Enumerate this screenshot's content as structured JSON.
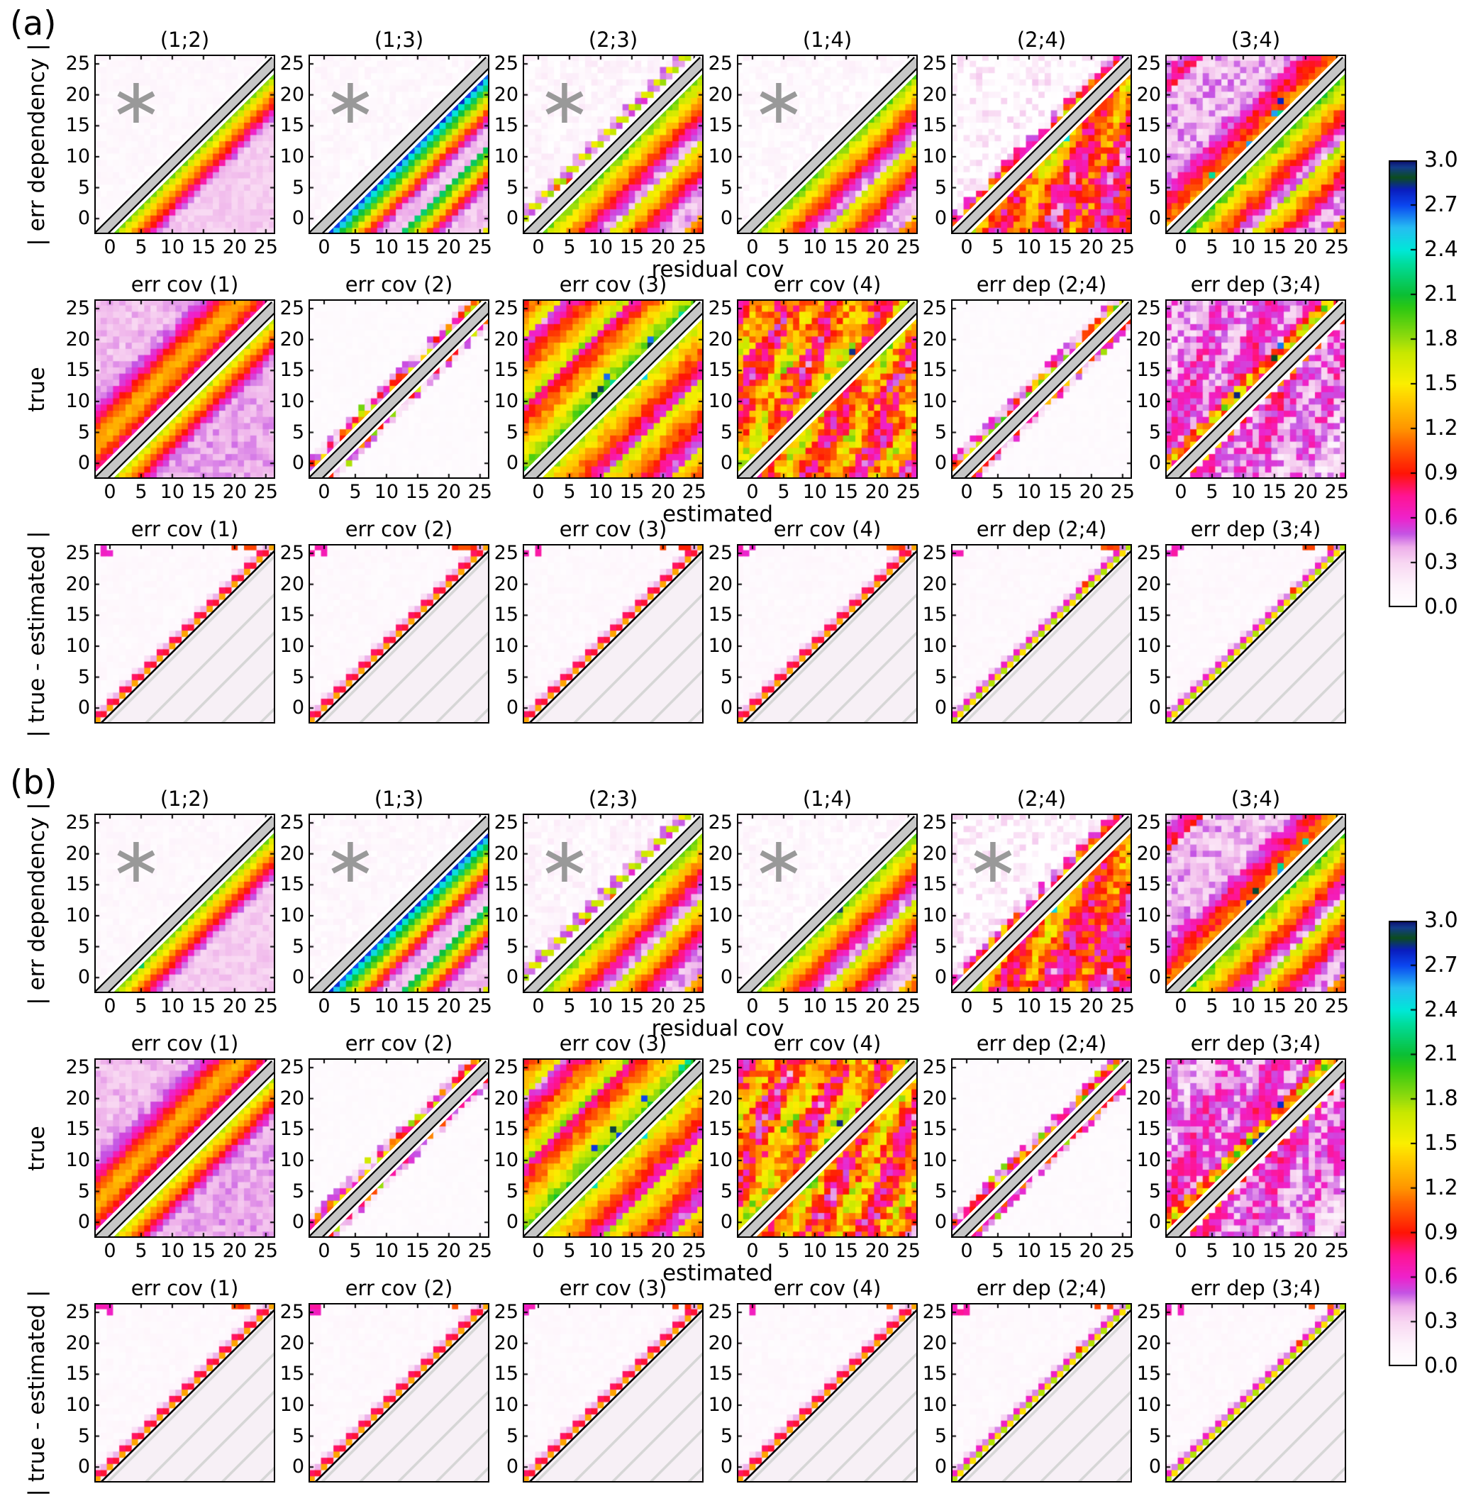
{
  "figure_description": "Two-panel matplotlib-style figure; panels (a) and (b) each contain a 3x6 grid of square heatmaps (axes 0-25) showing covariance / error-dependency diagnostics, with a gray masked diagonal band, gray asterisk markers on selected subplots, hatched masked lower triangles in the bottom row, and a shared 0.0-3.0 rainbow colorbar per panel.",
  "colors": {
    "background": "#ffffff",
    "mask_band_gray": "#c6c6c6",
    "band_edge": "#000000",
    "hatch_line": "#d6d6d6",
    "hatch_bg": "#f7f0f6",
    "asterisk": "#999999",
    "text": "#000000"
  },
  "chart_data": {
    "type": "heatmap",
    "grid_cells": 29,
    "value_range": [
      0,
      3
    ],
    "axis": {
      "ticks": [
        0,
        5,
        10,
        15,
        20,
        25
      ],
      "range": [
        -2.5,
        26.5
      ],
      "grid": false
    },
    "colorbar": {
      "ticks": [
        "3.0",
        "2.7",
        "2.4",
        "2.1",
        "1.8",
        "1.5",
        "1.2",
        "0.9",
        "0.6",
        "0.3",
        "0.0"
      ],
      "vmin": 0,
      "vmax": 3,
      "position": "right"
    },
    "colormap_stops": [
      [
        0,
        "#ffffff"
      ],
      [
        0.05,
        "#fdf2fb"
      ],
      [
        0.1,
        "#f8d7f2"
      ],
      [
        0.135,
        "#eeafea"
      ],
      [
        0.165,
        "#c454e4"
      ],
      [
        0.2,
        "#ee22cc"
      ],
      [
        0.25,
        "#ff1493"
      ],
      [
        0.3,
        "#ff1405"
      ],
      [
        0.37,
        "#ff6a00"
      ],
      [
        0.4,
        "#ff9500"
      ],
      [
        0.47,
        "#ffd200"
      ],
      [
        0.5,
        "#fbee00"
      ],
      [
        0.57,
        "#c8e800"
      ],
      [
        0.6,
        "#97dc0c"
      ],
      [
        0.67,
        "#2ec812"
      ],
      [
        0.7,
        "#0bbf35"
      ],
      [
        0.77,
        "#00dd9e"
      ],
      [
        0.8,
        "#00e8d8"
      ],
      [
        0.85,
        "#27bdf2"
      ],
      [
        0.9,
        "#0b46f0"
      ],
      [
        0.935,
        "#0a1dbd"
      ],
      [
        0.962,
        "#0c4d1e"
      ],
      [
        0.985,
        "#123c8c"
      ],
      [
        1,
        "#0d0d70"
      ]
    ],
    "asterisk_marker": {
      "x": 4.2,
      "y": 18.7,
      "radius_px": 28,
      "color": "#999999"
    },
    "panels": [
      {
        "label": "(a)",
        "rows": [
          {
            "ylabel": "| err dependency |",
            "xlabel": "residual cov",
            "show_xticklabels": true,
            "masked": false,
            "subplots": [
              {
                "title": "(1;2)",
                "pattern": "dep12",
                "asterisk": true,
                "seed": 11
              },
              {
                "title": "(1;3)",
                "pattern": "dep13",
                "asterisk": true,
                "seed": 12
              },
              {
                "title": "(2;3)",
                "pattern": "dep23",
                "asterisk": true,
                "seed": 13
              },
              {
                "title": "(1;4)",
                "pattern": "dep14",
                "asterisk": true,
                "seed": 14
              },
              {
                "title": "(2;4)",
                "pattern": "dep24",
                "asterisk": false,
                "seed": 15
              },
              {
                "title": "(3;4)",
                "pattern": "dep34",
                "asterisk": false,
                "seed": 16
              }
            ]
          },
          {
            "ylabel": "true",
            "xlabel": "estimated",
            "show_xticklabels": true,
            "masked": false,
            "subplots": [
              {
                "title": "err cov (1)",
                "pattern": "cov1",
                "asterisk": false,
                "seed": 21
              },
              {
                "title": "err cov (2)",
                "pattern": "cov2",
                "asterisk": false,
                "seed": 22
              },
              {
                "title": "err cov (3)",
                "pattern": "cov3",
                "asterisk": false,
                "seed": 23
              },
              {
                "title": "err cov (4)",
                "pattern": "cov4",
                "asterisk": false,
                "seed": 24
              },
              {
                "title": "err dep (2;4)",
                "pattern": "dep24e",
                "asterisk": false,
                "seed": 25
              },
              {
                "title": "err dep (3;4)",
                "pattern": "dep34e",
                "asterisk": false,
                "seed": 26
              }
            ]
          },
          {
            "ylabel": "| true - estimated |",
            "xlabel": "",
            "show_xticklabels": false,
            "masked": true,
            "subplots": [
              {
                "title": "err cov (1)",
                "pattern": "m_warm",
                "asterisk": false,
                "seed": 31
              },
              {
                "title": "err cov (2)",
                "pattern": "m_warm",
                "asterisk": false,
                "seed": 32
              },
              {
                "title": "err cov (3)",
                "pattern": "m_warm",
                "asterisk": false,
                "seed": 33
              },
              {
                "title": "err cov (4)",
                "pattern": "m_warm",
                "asterisk": false,
                "seed": 34
              },
              {
                "title": "err dep (2;4)",
                "pattern": "m_green",
                "asterisk": false,
                "seed": 35
              },
              {
                "title": "err dep (3;4)",
                "pattern": "m_green",
                "asterisk": false,
                "seed": 36
              }
            ]
          }
        ]
      },
      {
        "label": "(b)",
        "rows": [
          {
            "ylabel": "| err dependency |",
            "xlabel": "residual cov",
            "show_xticklabels": true,
            "masked": false,
            "subplots": [
              {
                "title": "(1;2)",
                "pattern": "dep12",
                "asterisk": true,
                "seed": 111
              },
              {
                "title": "(1;3)",
                "pattern": "dep13",
                "asterisk": true,
                "seed": 112
              },
              {
                "title": "(2;3)",
                "pattern": "dep23",
                "asterisk": true,
                "seed": 113
              },
              {
                "title": "(1;4)",
                "pattern": "dep14",
                "asterisk": true,
                "seed": 114
              },
              {
                "title": "(2;4)",
                "pattern": "dep24",
                "asterisk": true,
                "seed": 115
              },
              {
                "title": "(3;4)",
                "pattern": "dep34",
                "asterisk": false,
                "seed": 116
              }
            ]
          },
          {
            "ylabel": "true",
            "xlabel": "estimated",
            "show_xticklabels": true,
            "masked": false,
            "subplots": [
              {
                "title": "err cov (1)",
                "pattern": "cov1",
                "asterisk": false,
                "seed": 121
              },
              {
                "title": "err cov (2)",
                "pattern": "cov2",
                "asterisk": false,
                "seed": 122
              },
              {
                "title": "err cov (3)",
                "pattern": "cov3",
                "asterisk": false,
                "seed": 123
              },
              {
                "title": "err cov (4)",
                "pattern": "cov4",
                "asterisk": false,
                "seed": 124
              },
              {
                "title": "err dep (2;4)",
                "pattern": "dep24e",
                "asterisk": false,
                "seed": 125
              },
              {
                "title": "err dep (3;4)",
                "pattern": "dep34e",
                "asterisk": false,
                "seed": 126
              }
            ]
          },
          {
            "ylabel": "| true - estimated |",
            "xlabel": "",
            "show_xticklabels": false,
            "masked": true,
            "subplots": [
              {
                "title": "err cov (1)",
                "pattern": "m_warm",
                "asterisk": false,
                "seed": 131
              },
              {
                "title": "err cov (2)",
                "pattern": "m_warm",
                "asterisk": false,
                "seed": 132
              },
              {
                "title": "err cov (3)",
                "pattern": "m_warm",
                "asterisk": false,
                "seed": 133
              },
              {
                "title": "err cov (4)",
                "pattern": "m_warm",
                "asterisk": false,
                "seed": 134
              },
              {
                "title": "err dep (2;4)",
                "pattern": "m_green",
                "asterisk": false,
                "seed": 135
              },
              {
                "title": "err dep (3;4)",
                "pattern": "m_green",
                "asterisk": false,
                "seed": 136
              }
            ]
          }
        ]
      }
    ],
    "patterns": {
      "dep12": {
        "type": "stripe",
        "below": {
          "start": 2.05,
          "step": 0.2,
          "period": 40,
          "floor": 0.33
        },
        "above": {
          "start": 0.08,
          "step": 0,
          "period": 40,
          "floor": 0.06
        },
        "noise": 0.05,
        "wc": "below",
        "specks": [
          {
            "n": 1,
            "dmax": 1,
            "v": [
              2.82,
              2.9
            ],
            "i": [
              11,
              13
            ],
            "side": "below"
          },
          {
            "n": 2,
            "dmax": 2,
            "v": [
              1.4,
              2.3
            ],
            "i": [
              2,
              6
            ],
            "side": "below"
          }
        ]
      },
      "dep13": {
        "type": "stripe",
        "below": {
          "start": 3.0,
          "step": 0.28,
          "period": 13,
          "decay": 0.72,
          "floor": 0.35
        },
        "above": {
          "start": 0.08,
          "step": 0,
          "period": 40,
          "floor": 0.06
        },
        "noise": 0.07,
        "wc": "below"
      },
      "dep23": {
        "type": "stripe",
        "below": {
          "start": 2.05,
          "step": 0.16,
          "period": 12,
          "decay": 0.8,
          "floor": 0.38
        },
        "above": {
          "start": 0.1,
          "step": 0,
          "period": 40,
          "floor": 0.08
        },
        "alt": {
          "-2": [
            1.7,
            0.5
          ],
          "-3": [
            0.45,
            1.6
          ],
          "-4": [
            0.4,
            0.1
          ]
        },
        "noise": 0.1,
        "wc": "below",
        "specks": [
          {
            "n": 2,
            "dmax": 2,
            "v": [
              0.9,
              1.1
            ],
            "i": [
              3,
              16
            ],
            "side": "above"
          }
        ]
      },
      "dep14": {
        "type": "stripe",
        "below": {
          "start": 2.05,
          "step": 0.16,
          "period": 12,
          "decay": 0.8,
          "floor": 0.38
        },
        "above": {
          "start": 0.07,
          "step": 0,
          "period": 40,
          "floor": 0.05
        },
        "noise": 0.1,
        "wc": "below",
        "specks": [
          {
            "n": 2,
            "dmax": 2,
            "v": [
              2.7,
              3.0
            ],
            "i": [
              12,
              16
            ],
            "side": "below"
          }
        ]
      },
      "dep24": {
        "type": "stripe",
        "below": {
          "start": 1.25,
          "step": 0.04,
          "period": 16,
          "decay": 0.8,
          "floor": 0.45
        },
        "above": {
          "start": 0.05,
          "step": 0,
          "period": 40,
          "floor": 0.04
        },
        "alt": {
          "-1": [
            1.2,
            0.85
          ],
          "-2": [
            0.9,
            0.45
          ],
          "-3": [
            0.45,
            0.15
          ]
        },
        "noise": 0.28,
        "waves": 0.3,
        "wc": "below",
        "specks": [
          {
            "n": 1,
            "dmax": 2,
            "v": [
              2.3,
              2.5
            ],
            "i": [
              14,
              16
            ],
            "side": "below"
          }
        ]
      },
      "dep34": {
        "type": "stripe",
        "below": {
          "start": 2.1,
          "step": 0.16,
          "period": 12,
          "decay": 0.8,
          "floor": 0.4
        },
        "above": {
          "start": 1.2,
          "step": 0.1,
          "period": 22,
          "decay": 0.7,
          "floor": 0.36
        },
        "noise": 0.15,
        "wc": "below",
        "specks": [
          {
            "n": 3,
            "dmax": 3,
            "v": [
              2.5,
              3.0
            ],
            "i": [
              11,
              17
            ],
            "side": "above"
          },
          {
            "n": 2,
            "dmax": 2,
            "v": [
              2.2,
              2.5
            ],
            "i": [
              5,
              20
            ],
            "side": "above"
          }
        ]
      },
      "cov1": {
        "type": "arc",
        "below": {
          "start": 1.9,
          "step": 0.2,
          "period": 40,
          "floor": 0.4
        },
        "arc": {
          "floor": 0.36,
          "peak": 0.78,
          "kc": 5.5,
          "kw": 3.4,
          "tc": 0.42,
          "tw": 0.13,
          "amp": 1.0,
          "base": 0.2
        },
        "noise": 0.07,
        "wc": "both"
      },
      "cov2": {
        "type": "band",
        "field": 0.05,
        "bw": 3,
        "env": [
          1.05,
          0.7,
          0.32
        ],
        "green": 0.05,
        "noise": 0.02
      },
      "cov3": {
        "type": "stripe",
        "below": {
          "start": 1.85,
          "step": 0.125,
          "period": 11,
          "decay": 0.9,
          "floor": 0.5
        },
        "above": {
          "start": 1.95,
          "step": 0.125,
          "period": 11,
          "decay": 0.9,
          "floor": 0.5
        },
        "noise": 0.13,
        "wc": "below",
        "specks": [
          {
            "n": 6,
            "dmax": 3,
            "v": [
              2.6,
              3.0
            ],
            "i": [
              7,
              18
            ],
            "side": "above"
          },
          {
            "n": 4,
            "dmax": 2,
            "v": [
              2.2,
              2.5
            ],
            "i": [
              2,
              24
            ],
            "side": "both"
          }
        ]
      },
      "cov4": {
        "type": "stripe",
        "below": {
          "start": 1.35,
          "step": 0.05,
          "period": 9,
          "decay": 0.95,
          "floor": 0.55
        },
        "above": {
          "start": 1.35,
          "step": 0.05,
          "period": 9,
          "decay": 0.95,
          "floor": 0.55
        },
        "noise": 0.33,
        "waves": 0.3,
        "specks": [
          {
            "n": 3,
            "dmax": 3,
            "v": [
              1.6,
              1.9
            ],
            "i": [
              10,
              17
            ],
            "side": "above"
          },
          {
            "n": 1,
            "dmax": 2,
            "v": [
              2.9,
              3.0
            ],
            "i": [
              13,
              16
            ],
            "side": "above"
          }
        ]
      },
      "dep24e": {
        "type": "band",
        "field": 0.05,
        "bw": 3,
        "env": [
          1.15,
          0.8,
          0.4
        ],
        "green": 0.04,
        "noise": 0.02
      },
      "dep34e": {
        "type": "stripe",
        "below": {
          "start": 0.6,
          "step": 0.012,
          "period": 30,
          "floor": 0.38
        },
        "above": {
          "start": 0.62,
          "step": 0.01,
          "period": 30,
          "floor": 0.4
        },
        "alt": {
          "-1": [
            1.5,
            0.95
          ],
          "-2": [
            1.25,
            1.6
          ],
          "-3": [
            0.9,
            1.3
          ],
          "2": [
            0.05,
            1.2
          ],
          "3": [
            1.1,
            0.05
          ]
        },
        "noise": 0.2,
        "waves": 0.2,
        "specks": [
          {
            "n": 4,
            "dmax": 3,
            "v": [
              2.6,
              3.0
            ],
            "i": [
              9,
              17
            ],
            "side": "above"
          },
          {
            "n": 3,
            "dmax": 2,
            "v": [
              1.5,
              2.0
            ],
            "i": [
              3,
              22
            ],
            "side": "above"
          }
        ]
      },
      "m_warm": {
        "type": "masked",
        "field": 0.07,
        "alt1": [
          1.25,
          0.85
        ],
        "alt2": [
          0.8,
          0.4
        ],
        "alt3": [
          0.25,
          0.08
        ],
        "noise": 0.035
      },
      "m_green": {
        "type": "masked",
        "field": 0.07,
        "alt1": [
          1.75,
          1.45
        ],
        "alt2": [
          0.62,
          0.45
        ],
        "alt3": [
          0.3,
          0.1
        ],
        "noise": 0.035,
        "specks": [
          {
            "n": 1,
            "dmax": 1,
            "v": [
              0.95,
              1.0
            ],
            "i": [
              17,
              19
            ],
            "side": "above"
          }
        ]
      }
    }
  }
}
